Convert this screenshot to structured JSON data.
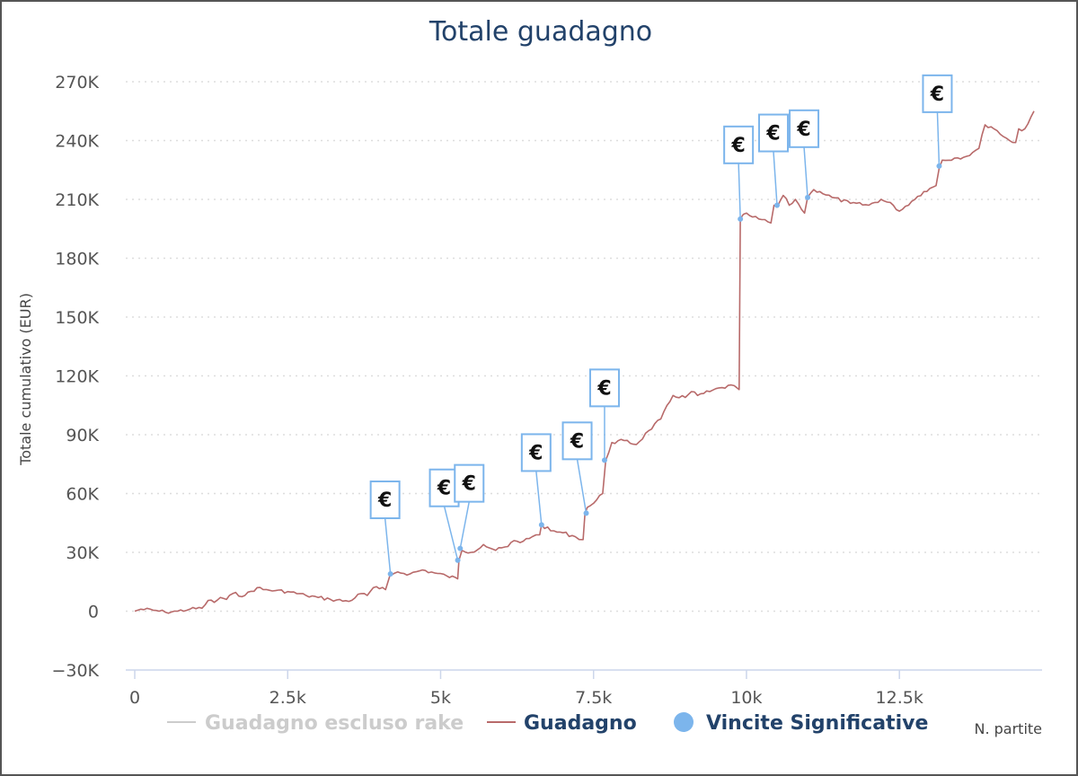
{
  "chart_data": {
    "type": "line",
    "title": "Totale guadagno",
    "xlabel": "N. partite",
    "ylabel": "Totale cumulativo (EUR)",
    "xlim": [
      0,
      14700
    ],
    "ylim": [
      -30000,
      270000
    ],
    "x_ticks": [
      0,
      2500,
      5000,
      7500,
      10000,
      12500
    ],
    "x_tick_labels": [
      "0",
      "2.5k",
      "5k",
      "7.5k",
      "10k",
      "12.5k"
    ],
    "y_ticks": [
      -30000,
      0,
      30000,
      60000,
      90000,
      120000,
      150000,
      180000,
      210000,
      240000,
      270000
    ],
    "y_tick_labels": [
      "−30K",
      "0",
      "30K",
      "60K",
      "90K",
      "120K",
      "150K",
      "180K",
      "210K",
      "240K",
      "270K"
    ],
    "grid": "horizontal dotted",
    "legend_placement": "bottom",
    "legend": [
      {
        "label": "Guadagno escluso rake",
        "state": "hidden",
        "color": "#cccccc"
      },
      {
        "label": "Guadagno",
        "state": "visible",
        "color": "#b86a6a"
      },
      {
        "label": "Vincite Significative",
        "state": "visible",
        "color": "#7cb5ec"
      }
    ],
    "series": [
      {
        "name": "Guadagno",
        "color": "#b86a6a",
        "x": [
          0,
          100,
          300,
          500,
          700,
          900,
          1100,
          1200,
          1300,
          1400,
          1500,
          1600,
          1800,
          2000,
          2100,
          2300,
          2500,
          2800,
          3000,
          3200,
          3500,
          3700,
          3800,
          3900,
          4000,
          4100,
          4180,
          4200,
          4300,
          4500,
          4700,
          4900,
          5100,
          5280,
          5300,
          5350,
          5500,
          5700,
          5900,
          6100,
          6200,
          6300,
          6400,
          6500,
          6620,
          6650,
          6800,
          7000,
          7200,
          7330,
          7360,
          7400,
          7500,
          7650,
          7700,
          7800,
          8000,
          8200,
          8400,
          8600,
          8800,
          9000,
          9100,
          9200,
          9400,
          9600,
          9800,
          9880,
          9900,
          10000,
          10100,
          10200,
          10400,
          10450,
          10500,
          10600,
          10700,
          10800,
          10950,
          11000,
          11100,
          11200,
          11400,
          11700,
          12000,
          12200,
          12400,
          12500,
          12700,
          12900,
          13100,
          13150,
          13200,
          13400,
          13600,
          13700,
          13800,
          13900,
          14000,
          14100,
          14200,
          14300,
          14400,
          14450,
          14500,
          14550,
          14700
        ],
        "y": [
          0,
          1000,
          500,
          -500,
          0,
          1000,
          1500,
          5500,
          4500,
          7000,
          6000,
          9000,
          8000,
          12000,
          11000,
          10500,
          10000,
          8000,
          7000,
          6000,
          5000,
          9000,
          8000,
          12000,
          11500,
          11000,
          19000,
          18500,
          20000,
          19000,
          21000,
          19500,
          18000,
          16500,
          26000,
          31000,
          30000,
          34000,
          31000,
          33000,
          36000,
          35000,
          37000,
          38000,
          39000,
          44000,
          41000,
          40000,
          38000,
          36500,
          50000,
          53000,
          55000,
          60000,
          77000,
          86000,
          87000,
          85000,
          92000,
          98000,
          110000,
          109000,
          112000,
          110000,
          112000,
          114000,
          115000,
          113000,
          200000,
          203000,
          201000,
          200000,
          198000,
          207000,
          206000,
          212000,
          207000,
          210000,
          203000,
          211000,
          215000,
          214000,
          211000,
          208000,
          207000,
          210000,
          207000,
          204000,
          209000,
          214000,
          217000,
          226000,
          230000,
          231000,
          232000,
          234000,
          236000,
          248000,
          247000,
          245000,
          242000,
          240000,
          239000,
          246000,
          245000,
          246000,
          255000
        ]
      }
    ],
    "significant_wins": {
      "name": "Vincite Significative",
      "marker": "€",
      "x": [
        4180,
        5280,
        5320,
        6650,
        7380,
        7680,
        9900,
        10500,
        11000,
        13150
      ],
      "y": [
        19000,
        26000,
        32000,
        44000,
        50000,
        77000,
        200000,
        207000,
        211000,
        227000
      ]
    }
  }
}
